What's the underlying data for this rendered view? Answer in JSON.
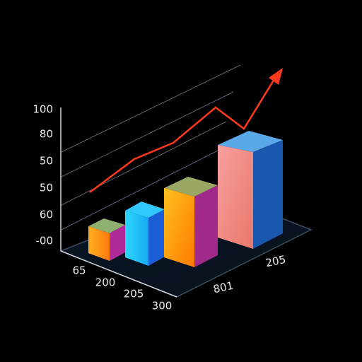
{
  "labels": {
    "y_axis": [
      "100",
      "80",
      "50",
      "50",
      "60",
      "-00"
    ],
    "x_axis": [
      "65",
      "200",
      "205",
      "300"
    ],
    "side_axis": [
      "205",
      "801"
    ]
  }
}
